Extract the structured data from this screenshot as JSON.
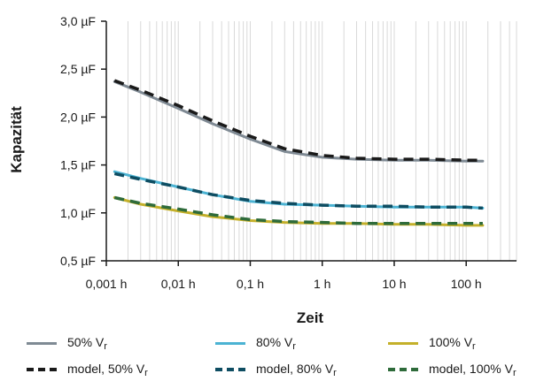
{
  "chart_data": {
    "type": "line",
    "xlabel": "Zeit",
    "ylabel": "Kapazität",
    "x_scale": "log",
    "xlim": [
      0.001,
      500
    ],
    "ylim": [
      0.5,
      3.0
    ],
    "x_ticks": [
      0.001,
      0.01,
      0.1,
      1,
      10,
      100
    ],
    "x_tick_labels": [
      "0,001 h",
      "0,01 h",
      "0,1 h",
      "1 h",
      "10 h",
      "100 h"
    ],
    "y_ticks": [
      0.5,
      1.0,
      1.5,
      2.0,
      2.5,
      3.0
    ],
    "y_tick_labels": [
      "0,5 µF",
      "1,0 µF",
      "1,5 µF",
      "2,0 µF",
      "2,5 µF",
      "3,0 µF"
    ],
    "grid": "vertical minor log gridlines",
    "legend_position": "bottom",
    "x": [
      0.0013,
      0.003,
      0.01,
      0.03,
      0.1,
      0.3,
      1,
      3,
      10,
      30,
      100,
      170
    ],
    "series": [
      {
        "name": "50% V",
        "name_sub": "r",
        "style": "solid",
        "color": "#7f8a94",
        "values": [
          2.37,
          2.26,
          2.09,
          1.93,
          1.77,
          1.64,
          1.58,
          1.56,
          1.55,
          1.55,
          1.54,
          1.54
        ]
      },
      {
        "name": "80% V",
        "name_sub": "r",
        "style": "solid",
        "color": "#4bb3d3",
        "values": [
          1.43,
          1.36,
          1.27,
          1.19,
          1.12,
          1.09,
          1.08,
          1.07,
          1.06,
          1.06,
          1.06,
          1.05
        ]
      },
      {
        "name": "100% V",
        "name_sub": "r",
        "style": "solid",
        "color": "#c4b02a",
        "values": [
          1.16,
          1.09,
          1.02,
          0.96,
          0.92,
          0.9,
          0.89,
          0.89,
          0.88,
          0.88,
          0.87,
          0.87
        ]
      },
      {
        "name": "model, 50% V",
        "name_sub": "r",
        "style": "dashed",
        "color": "#1a1a1a",
        "values": [
          2.38,
          2.28,
          2.12,
          1.96,
          1.8,
          1.67,
          1.6,
          1.57,
          1.56,
          1.56,
          1.55,
          1.55
        ]
      },
      {
        "name": "model, 80% V",
        "name_sub": "r",
        "style": "dashed",
        "color": "#0e4d62",
        "values": [
          1.41,
          1.35,
          1.27,
          1.19,
          1.13,
          1.1,
          1.08,
          1.07,
          1.07,
          1.06,
          1.06,
          1.05
        ]
      },
      {
        "name": "model, 100% V",
        "name_sub": "r",
        "style": "dashed",
        "color": "#2e6b3a",
        "values": [
          1.16,
          1.1,
          1.04,
          0.98,
          0.93,
          0.91,
          0.9,
          0.89,
          0.89,
          0.89,
          0.89,
          0.89
        ]
      }
    ]
  }
}
